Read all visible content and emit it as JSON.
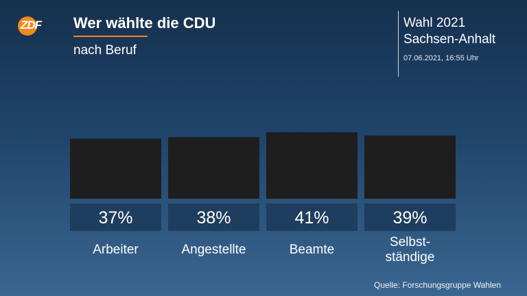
{
  "header": {
    "logo_text": "ZDF",
    "title": "Wer wählte die CDU",
    "subtitle": "nach Beruf"
  },
  "info": {
    "election_line1": "Wahl 2021",
    "election_line2": "Sachsen-Anhalt",
    "timestamp": "07.06.2021, 16:55 Uhr"
  },
  "footer": {
    "source": "Quelle: Forschungsgruppe Wahlen"
  },
  "colors": {
    "accent": "#f08a1c",
    "bar": "#1e1e1e",
    "label_box": "#1f3d5e"
  },
  "chart_data": {
    "type": "bar",
    "title": "Wer wählte die CDU",
    "subtitle": "nach Beruf",
    "categories": [
      "Arbeiter",
      "Angestellte",
      "Beamte",
      "Selbst-\nständige"
    ],
    "values": [
      37,
      38,
      41,
      39
    ],
    "value_labels": [
      "37%",
      "38%",
      "41%",
      "39%"
    ],
    "unit": "%",
    "ylim": [
      0,
      41
    ],
    "grid": false,
    "legend": "none"
  }
}
